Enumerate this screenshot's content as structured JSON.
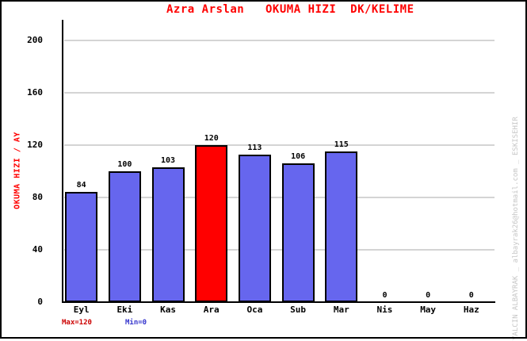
{
  "window": {
    "title": "Azra Arslan   OKUMA HIZI  DK/KELIME"
  },
  "chart_data": {
    "type": "bar",
    "title": "Azra Arslan   OKUMA HIZI  DK/KELIME",
    "xlabel": "",
    "ylabel": "OKUMA HIZI / AY",
    "categories": [
      "Eyl",
      "Eki",
      "Kas",
      "Ara",
      "Oca",
      "Sub",
      "Mar",
      "Nis",
      "May",
      "Haz"
    ],
    "values": [
      84,
      100,
      103,
      120,
      113,
      106,
      115,
      0,
      0,
      0
    ],
    "y_ticks": [
      0,
      40,
      80,
      120,
      160,
      200
    ],
    "ylim": [
      0,
      215
    ],
    "grid": true,
    "legend_position": "none",
    "highlight_index": 3,
    "annotations": {
      "max_label": "Max=120",
      "min_label": "Min=0"
    },
    "colors": {
      "bar": "#6666ee",
      "highlight_bar": "#ff0000",
      "title": "#ff0000",
      "ylabel": "#ff0000",
      "max_label": "#cc0000",
      "min_label": "#3333cc",
      "grid": "#d4d4d4",
      "axis": "#000000",
      "watermark": "#c6c6c6"
    }
  },
  "watermark": "YALCIN ALBAYRAK _ albayrak26@hotmail.com _ ESKISEHIR"
}
